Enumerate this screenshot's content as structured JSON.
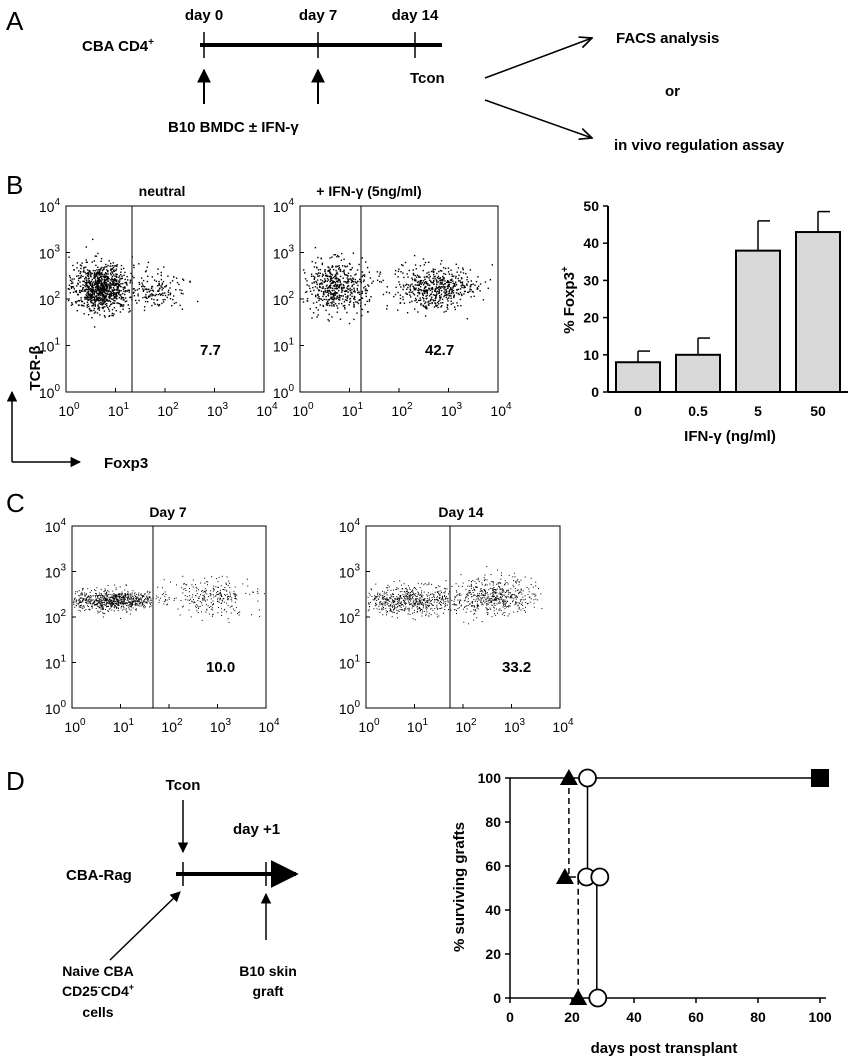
{
  "panels": [
    "A",
    "B",
    "C",
    "D"
  ],
  "panel_a": {
    "cell_label": "CBA CD4",
    "cell_sup": "+",
    "days": [
      "day 0",
      "day 7",
      "day 14"
    ],
    "tcon": "Tcon",
    "treatment": "B10 BMDC ± IFN-γ",
    "outcomes": [
      "FACS analysis",
      "or",
      "in vivo regulation assay"
    ]
  },
  "panel_b": {
    "plots": [
      {
        "title": "neutral",
        "value": "7.7"
      },
      {
        "title": "+ IFN-γ (5ng/ml)",
        "value": "42.7"
      }
    ],
    "y_axis": "TCR-β",
    "x_axis": "Foxp3"
  },
  "panel_c": {
    "plots": [
      {
        "title": "Day 7",
        "value": "10.0"
      },
      {
        "title": "Day 14",
        "value": "33.2"
      }
    ]
  },
  "log_ticks": [
    "10",
    "10",
    "10",
    "10",
    "10"
  ],
  "log_exps": [
    "0",
    "1",
    "2",
    "3",
    "4"
  ],
  "panel_d": {
    "tcon": "Tcon",
    "day": "day +1",
    "host": "CBA-Rag",
    "naive": [
      "Naive CBA",
      "CD25",
      "-",
      "CD4",
      "+",
      "cells"
    ],
    "graft": [
      "B10 skin",
      "graft"
    ]
  },
  "chart_data": [
    {
      "type": "bar",
      "categories": [
        "0",
        "0.5",
        "5",
        "50"
      ],
      "values": [
        8,
        10,
        38,
        43
      ],
      "errors": [
        3,
        4.5,
        8,
        5.5
      ],
      "xlabel": "IFN-γ (ng/ml)",
      "ylabel": "% Foxp3",
      "ylabel_sup": "+",
      "ylim": [
        0,
        50
      ],
      "yticks": [
        "0",
        "10",
        "20",
        "30",
        "40",
        "50"
      ],
      "bar_color": "#d9d9d9"
    },
    {
      "type": "line",
      "xlabel": "days post transplant",
      "ylabel": "% surviving grafts",
      "xlim": [
        0,
        100
      ],
      "ylim": [
        0,
        100
      ],
      "xticks": [
        "0",
        "20",
        "40",
        "60",
        "80",
        "100"
      ],
      "yticks": [
        "0",
        "20",
        "40",
        "60",
        "80",
        "100"
      ],
      "series": [
        {
          "marker": "triangle",
          "style": "dashed",
          "x": [
            19,
            19,
            22,
            22
          ],
          "y": [
            100,
            55,
            55,
            0
          ]
        },
        {
          "marker": "circle",
          "style": "solid",
          "x": [
            25,
            25,
            28,
            28
          ],
          "y": [
            100,
            55,
            55,
            0
          ]
        },
        {
          "marker": "square",
          "style": "solid",
          "x": [
            0,
            100
          ],
          "y": [
            100,
            100
          ]
        }
      ]
    }
  ]
}
